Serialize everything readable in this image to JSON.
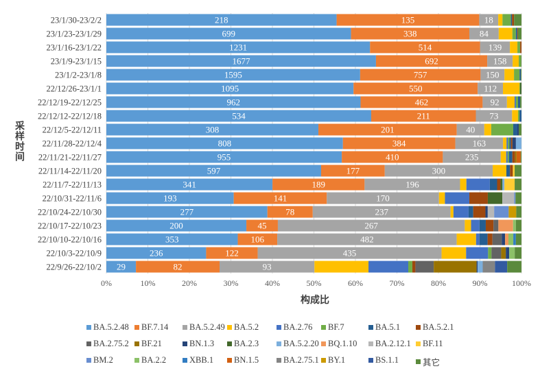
{
  "chart_data": {
    "type": "bar",
    "orientation": "horizontal",
    "stacked": "percent",
    "title": "",
    "xlabel": "构成比",
    "ylabel": "采样时间",
    "xlim": [
      0,
      100
    ],
    "x_ticks": [
      "0%",
      "10%",
      "20%",
      "30%",
      "40%",
      "50%",
      "60%",
      "70%",
      "80%",
      "90%",
      "100%"
    ],
    "grid": true,
    "legend_position": "bottom",
    "categories": [
      "23/1/30-23/2/2",
      "23/1/23-23/1/29",
      "23/1/16-23/1/22",
      "23/1/9-23/1/15",
      "23/1/2-23/1/8",
      "22/12/26-23/1/1",
      "22/12/19-22/12/25",
      "22/12/12-22/12/18",
      "22/12/5-22/12/11",
      "22/11/28-22/12/4",
      "22/11/21-22/11/27",
      "22/11/14-22/11/20",
      "22/11/7-22/11/13",
      "22/10/31-22/11/6",
      "22/10/24-22/10/30",
      "22/10/17-22/10/23",
      "22/10/10-22/10/16",
      "22/10/3-22/10/9",
      "22/9/26-22/10/2"
    ],
    "series": [
      {
        "name": "BA.5.2.48",
        "color": "#5B9BD5",
        "labeled": true,
        "values": [
          218,
          699,
          1231,
          1677,
          1595,
          1095,
          962,
          534,
          308,
          808,
          955,
          597,
          341,
          193,
          277,
          200,
          353,
          236,
          29
        ]
      },
      {
        "name": "BF.7.14",
        "color": "#ED7D31",
        "labeled": true,
        "values": [
          135,
          338,
          514,
          692,
          757,
          550,
          462,
          211,
          201,
          384,
          410,
          177,
          189,
          141,
          78,
          45,
          106,
          122,
          82
        ]
      },
      {
        "name": "BA.5.2.49",
        "color": "#A5A5A5",
        "labeled": true,
        "values": [
          18,
          84,
          139,
          158,
          150,
          112,
          92,
          73,
          40,
          163,
          235,
          300,
          196,
          170,
          237,
          267,
          482,
          435,
          93
        ]
      },
      {
        "name": "BA.5.2",
        "color": "#FFC000",
        "values": [
          4,
          39,
          35,
          38,
          60,
          73,
          29,
          12,
          10,
          12,
          22,
          38,
          13,
          9,
          5,
          9,
          52,
          58,
          53
        ]
      },
      {
        "name": "BA.2.76",
        "color": "#4472C4",
        "values": [
          0,
          0,
          0,
          0,
          0,
          0,
          5,
          0,
          0,
          5,
          6,
          0,
          48,
          37,
          26,
          12,
          9,
          52,
          39
        ]
      },
      {
        "name": "BF.7",
        "color": "#70AD47",
        "values": [
          8,
          10,
          13,
          13,
          35,
          3,
          8,
          3,
          32,
          5,
          5,
          0,
          0,
          0,
          0,
          0,
          0,
          8,
          4
        ]
      },
      {
        "name": "BA.5.1",
        "color": "#255E91",
        "values": [
          1,
          4,
          0,
          0,
          8,
          0,
          8,
          4,
          6,
          5,
          14,
          10,
          15,
          0,
          8,
          9,
          22,
          0,
          0
        ]
      },
      {
        "name": "BA.5.2.1",
        "color": "#9E480E",
        "values": [
          2,
          2,
          6,
          0,
          0,
          0,
          0,
          0,
          0,
          5,
          11,
          8,
          7,
          28,
          21,
          11,
          13,
          0,
          3
        ]
      },
      {
        "name": "BA.2.75.2",
        "color": "#636363",
        "values": [
          0,
          0,
          0,
          0,
          0,
          0,
          0,
          0,
          0,
          0,
          0,
          0,
          0,
          0,
          0,
          7,
          25,
          23,
          18
        ]
      },
      {
        "name": "BF.21",
        "color": "#997300",
        "values": [
          0,
          0,
          0,
          0,
          0,
          0,
          0,
          0,
          0,
          0,
          6,
          0,
          0,
          0,
          0,
          0,
          0,
          11,
          42
        ]
      },
      {
        "name": "BN.1.3",
        "color": "#264478",
        "values": [
          0,
          0,
          0,
          0,
          0,
          0,
          0,
          0,
          2,
          12,
          0,
          0,
          0,
          0,
          4,
          0,
          9,
          8,
          1
        ]
      },
      {
        "name": "BA.2.3",
        "color": "#43682B",
        "values": [
          0,
          0,
          0,
          0,
          0,
          6,
          0,
          0,
          0,
          0,
          0,
          0,
          4,
          22,
          0,
          0,
          0,
          0,
          0
        ]
      },
      {
        "name": "BA.5.2.20",
        "color": "#7CAFDD",
        "values": [
          0,
          0,
          0,
          0,
          0,
          0,
          0,
          0,
          0,
          19,
          0,
          0,
          4,
          0,
          0,
          0,
          0,
          0,
          5
        ]
      },
      {
        "name": "BQ.1.10",
        "color": "#F1975A",
        "values": [
          0,
          0,
          0,
          0,
          0,
          0,
          0,
          0,
          0,
          0,
          0,
          0,
          0,
          0,
          0,
          21,
          9,
          0,
          0
        ]
      },
      {
        "name": "BA.2.12.1",
        "color": "#B7B7B7",
        "values": [
          0,
          0,
          0,
          0,
          0,
          0,
          0,
          0,
          0,
          0,
          0,
          0,
          0,
          18,
          11,
          0,
          0,
          0,
          0
        ]
      },
      {
        "name": "BF.11",
        "color": "#FFCD33",
        "values": [
          0,
          0,
          0,
          0,
          0,
          0,
          0,
          0,
          0,
          0,
          0,
          5,
          21,
          0,
          0,
          0,
          0,
          0,
          0
        ]
      },
      {
        "name": "BM.2",
        "color": "#698ED0",
        "values": [
          0,
          0,
          0,
          0,
          0,
          0,
          0,
          0,
          0,
          0,
          0,
          0,
          0,
          2,
          25,
          0,
          0,
          0,
          0
        ]
      },
      {
        "name": "BA.2.2",
        "color": "#8CC168",
        "values": [
          0,
          0,
          0,
          0,
          0,
          0,
          0,
          0,
          0,
          0,
          0,
          0,
          0,
          0,
          0,
          4,
          13,
          13,
          0
        ]
      },
      {
        "name": "XBB.1",
        "color": "#327DC2",
        "values": [
          0,
          0,
          0,
          0,
          0,
          0,
          0,
          0,
          0,
          0,
          0,
          0,
          0,
          0,
          0,
          0,
          7,
          0,
          0
        ]
      },
      {
        "name": "BN.1.5",
        "color": "#D26012",
        "values": [
          0,
          0,
          0,
          0,
          0,
          0,
          0,
          0,
          0,
          0,
          17,
          0,
          0,
          0,
          0,
          0,
          0,
          0,
          0
        ]
      },
      {
        "name": "BA.2.75.1",
        "color": "#848484",
        "values": [
          0,
          0,
          0,
          0,
          0,
          0,
          0,
          0,
          0,
          0,
          0,
          0,
          0,
          0,
          0,
          0,
          0,
          0,
          12
        ]
      },
      {
        "name": "BY.1",
        "color": "#CC9A00",
        "values": [
          0,
          0,
          0,
          0,
          0,
          0,
          0,
          0,
          0,
          0,
          0,
          0,
          0,
          0,
          13,
          0,
          0,
          0,
          0
        ]
      },
      {
        "name": "BS.1.1",
        "color": "#335AA1",
        "values": [
          0,
          0,
          0,
          0,
          0,
          0,
          0,
          0,
          0,
          0,
          0,
          0,
          0,
          0,
          0,
          0,
          0,
          0,
          12
        ]
      },
      {
        "name": "其它",
        "color": "#5B8A3C",
        "values": [
          7,
          10,
          0,
          4,
          4,
          0,
          5,
          0,
          4,
          0,
          3,
          19,
          14,
          9,
          9,
          8,
          15,
          16,
          14
        ]
      }
    ]
  }
}
